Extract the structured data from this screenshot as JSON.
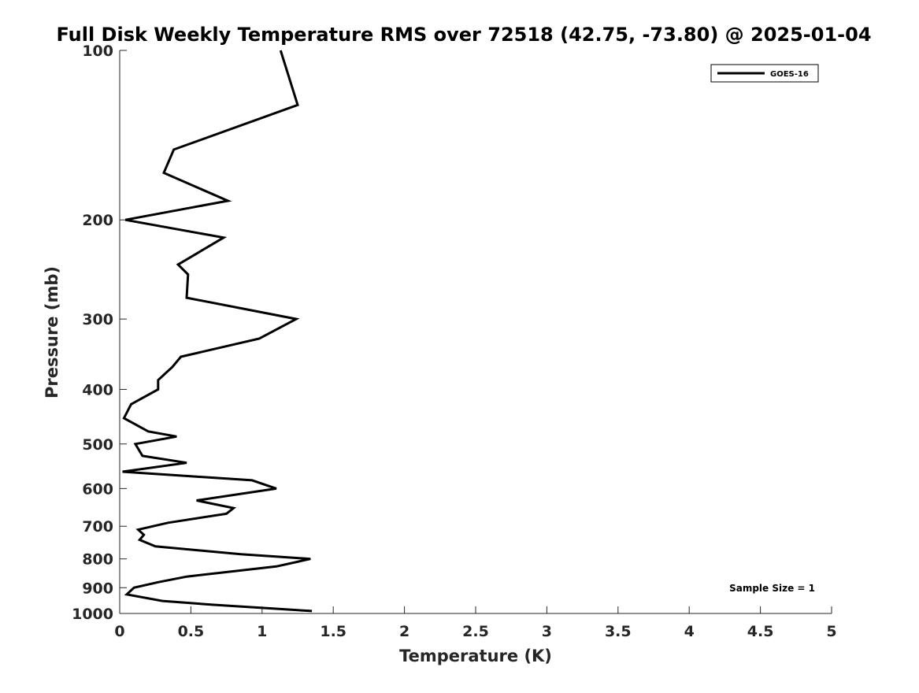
{
  "chart_data": {
    "type": "line",
    "title": "Full Disk Weekly Temperature RMS over 72518 (42.75, -73.80) @ 2025-01-04",
    "xlabel": "Temperature (K)",
    "ylabel": "Pressure (mb)",
    "xlim": [
      0,
      5
    ],
    "ylim": [
      100,
      1000
    ],
    "yscale": "log",
    "yreversed": true,
    "grid": false,
    "legend_position": "top-right",
    "x_ticks": [
      "0",
      "0.5",
      "1",
      "1.5",
      "2",
      "2.5",
      "3",
      "3.5",
      "4",
      "4.5",
      "5"
    ],
    "y_ticks": [
      "100",
      "200",
      "300",
      "400",
      "500",
      "600",
      "700",
      "800",
      "900",
      "1000"
    ],
    "annotation": "Sample Size = 1",
    "series": [
      {
        "name": "GOES-16",
        "color": "#000000",
        "points": [
          [
            1.13,
            100
          ],
          [
            1.25,
            125
          ],
          [
            0.38,
            150
          ],
          [
            0.31,
            165
          ],
          [
            0.76,
            185
          ],
          [
            0.04,
            200
          ],
          [
            0.73,
            215
          ],
          [
            0.41,
            240
          ],
          [
            0.48,
            250
          ],
          [
            0.47,
            275
          ],
          [
            1.24,
            300
          ],
          [
            0.98,
            325
          ],
          [
            0.43,
            350
          ],
          [
            0.37,
            365
          ],
          [
            0.27,
            385
          ],
          [
            0.27,
            400
          ],
          [
            0.08,
            425
          ],
          [
            0.03,
            450
          ],
          [
            0.2,
            475
          ],
          [
            0.4,
            485
          ],
          [
            0.11,
            500
          ],
          [
            0.16,
            525
          ],
          [
            0.47,
            540
          ],
          [
            0.02,
            560
          ],
          [
            0.93,
            580
          ],
          [
            1.1,
            600
          ],
          [
            0.54,
            630
          ],
          [
            0.8,
            650
          ],
          [
            0.75,
            665
          ],
          [
            0.34,
            690
          ],
          [
            0.13,
            710
          ],
          [
            0.17,
            725
          ],
          [
            0.14,
            740
          ],
          [
            0.25,
            760
          ],
          [
            0.85,
            785
          ],
          [
            1.34,
            800
          ],
          [
            1.1,
            825
          ],
          [
            0.47,
            860
          ],
          [
            0.27,
            880
          ],
          [
            0.1,
            900
          ],
          [
            0.05,
            925
          ],
          [
            0.3,
            950
          ],
          [
            0.65,
            965
          ],
          [
            1.35,
            990
          ]
        ]
      }
    ]
  }
}
